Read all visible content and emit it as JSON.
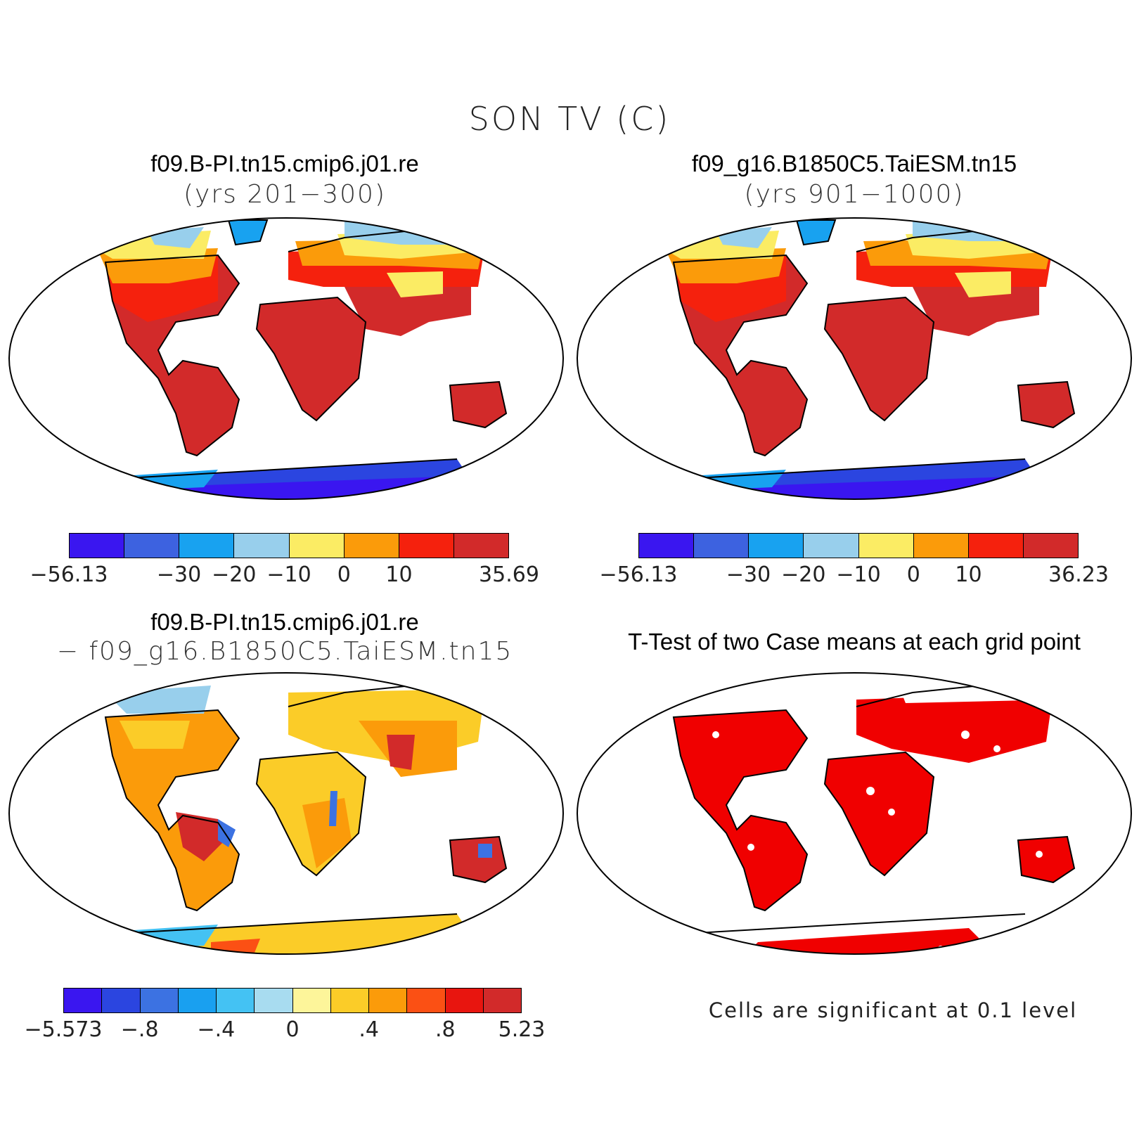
{
  "main_title": "SON TV (C)",
  "panels": [
    {
      "title": "f09.B-PI.tn15.cmip6.j01.re",
      "subtitle": "(yrs 201−300)"
    },
    {
      "title": "f09_g16.B1850C5.TaiESM.tn15",
      "subtitle": "(yrs 901−1000)"
    },
    {
      "title": "f09.B-PI.tn15.cmip6.j01.re",
      "subtitle": "− f09_g16.B1850C5.TaiESM.tn15"
    },
    {
      "title": "T-Test of two Case means at each grid point",
      "subtitle": ""
    }
  ],
  "colorbar_abs_colors": [
    "#3a16f0",
    "#3d62e0",
    "#18a2f0",
    "#98cfec",
    "#fbec64",
    "#fb9b0a",
    "#f5210d",
    "#d22a2a"
  ],
  "colorbar_abs_1": {
    "labels": [
      "−56.13",
      "−30",
      "−20",
      "−10",
      "0",
      "10",
      "35.69"
    ]
  },
  "colorbar_abs_2": {
    "labels": [
      "−56.13",
      "−30",
      "−20",
      "−10",
      "0",
      "10",
      "36.23"
    ]
  },
  "colorbar_diff": {
    "colors": [
      "#3a16f0",
      "#2b45e0",
      "#3c72e2",
      "#19a0f0",
      "#44c2f3",
      "#a8dcf0",
      "#fdf59a",
      "#fbcc28",
      "#fb9b0a",
      "#fb5014",
      "#e8150f",
      "#d22a2a"
    ],
    "labels": [
      "−5.573",
      "−.8",
      "−.4",
      "0",
      ".4",
      ".8",
      "5.23"
    ]
  },
  "significance_note": "Cells are significant at 0.1 level",
  "map_colors": {
    "hot": "#d22a2a",
    "warm": "#f5210d",
    "mild": "#fb9b0a",
    "cool": "#fbec64",
    "cold": "#98cfec",
    "ice": "#3a16f0",
    "sig": "#f00000"
  }
}
